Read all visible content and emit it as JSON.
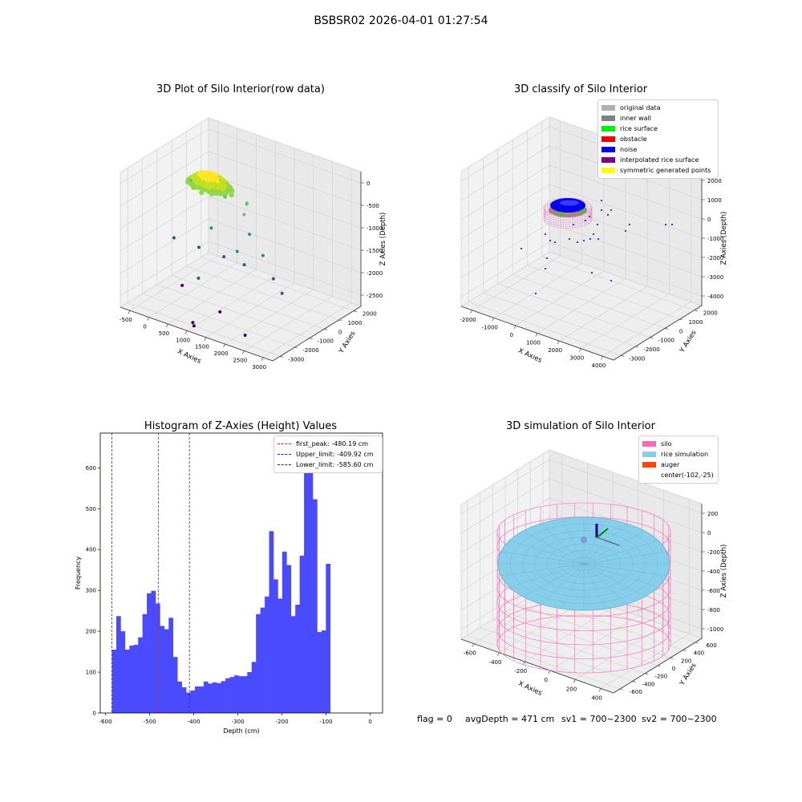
{
  "suptitle": "BSBSR02 2026-04-01 01:27:54",
  "footer": {
    "flag": "flag = 0",
    "avg": "avgDepth = 471 cm",
    "sv1": "sv1 = 700~2300",
    "sv2": "sv2 = 700~2300"
  },
  "chart_data": [
    {
      "type": "scatter",
      "title": "3D Plot of Silo Interior(row data)",
      "xlabel": "X Axies",
      "ylabel": "Y Axies",
      "zlabel": "Z Axies (Depth)",
      "x_ticks": [
        "-500",
        "0",
        "500",
        "1000",
        "1500",
        "2000",
        "2500",
        "3000"
      ],
      "y_ticks": [
        "-3000",
        "-2000",
        "-1000",
        "0",
        "1000",
        "2000"
      ],
      "z_ticks": [
        "-2500",
        "-2000",
        "-1500",
        "-1000",
        "-500",
        "0"
      ],
      "colormap": "viridis",
      "points": [
        [
          -100,
          -200,
          -420
        ],
        [
          700,
          0,
          -600
        ],
        [
          1100,
          400,
          -700
        ],
        [
          1300,
          -300,
          -750
        ],
        [
          900,
          900,
          -900
        ],
        [
          500,
          -400,
          -1300
        ],
        [
          1400,
          -200,
          -1200
        ],
        [
          1900,
          -600,
          -1450
        ],
        [
          2400,
          -1200,
          -1700
        ],
        [
          2700,
          -1400,
          -1900
        ],
        [
          -300,
          -800,
          -1700
        ],
        [
          300,
          -700,
          -1750
        ],
        [
          900,
          -600,
          -1800
        ],
        [
          1200,
          -500,
          -1600
        ],
        [
          1500,
          -800,
          -1750
        ],
        [
          600,
          -1500,
          -2200
        ],
        [
          300,
          -1800,
          -2400
        ],
        [
          1500,
          -2400,
          -2500
        ],
        [
          2300,
          -2800,
          -2700
        ],
        [
          1000,
          -2900,
          -2800
        ],
        [
          1050,
          -2950,
          -2850
        ]
      ],
      "surface": {
        "x": [
          -300,
          800
        ],
        "y": [
          -400,
          700
        ],
        "z": [
          -250,
          -550
        ]
      }
    },
    {
      "type": "scatter",
      "title": "3D classify of Silo Interior",
      "xlabel": "X Axies",
      "ylabel": "Y Axies",
      "zlabel": "Z Axies (Depth)",
      "x_ticks": [
        "-2000",
        "-1000",
        "0",
        "1000",
        "2000",
        "3000",
        "4000"
      ],
      "y_ticks": [
        "-3000",
        "-2000",
        "-1000",
        "0",
        "1000",
        "2000"
      ],
      "z_ticks": [
        "-4000",
        "-3000",
        "-2000",
        "-1000",
        "0",
        "1000",
        "2000"
      ],
      "legend": [
        {
          "label": "original data",
          "color": "#b0b0b0"
        },
        {
          "label": "inner wall",
          "color": "#808080"
        },
        {
          "label": "rice surface",
          "color": "#00ee00"
        },
        {
          "label": "obstacle",
          "color": "#ee0000"
        },
        {
          "label": "noise",
          "color": "#0000ee"
        },
        {
          "label": "interpolated rice surface",
          "color": "#800080"
        },
        {
          "label": "symmetric generated points",
          "color": "#ffff00"
        }
      ]
    },
    {
      "type": "bar",
      "title": "Histogram of Z-Axies (Height) Values",
      "xlabel": "Depth (cm)",
      "ylabel": "Frequency",
      "xlim": [
        -612,
        28
      ],
      "ylim": [
        0,
        685
      ],
      "x_ticks": [
        -600,
        -500,
        -400,
        -300,
        -200,
        -100,
        0
      ],
      "y_ticks": [
        0,
        100,
        200,
        300,
        400,
        500,
        600
      ],
      "bin_start": -585.6,
      "bin_width": 9.9,
      "values": [
        155,
        237,
        200,
        155,
        165,
        167,
        185,
        242,
        293,
        299,
        268,
        213,
        205,
        233,
        137,
        77,
        63,
        50,
        55,
        65,
        65,
        77,
        72,
        75,
        73,
        78,
        85,
        88,
        92,
        90,
        90,
        100,
        125,
        242,
        258,
        285,
        445,
        327,
        280,
        395,
        362,
        237,
        265,
        385,
        660,
        590,
        523,
        198,
        202,
        365
      ],
      "bar_color": "#4a4aff",
      "vlines": [
        {
          "label": "first_peak: -480.19 cm",
          "x": -480.19,
          "color": "#dd2222"
        },
        {
          "label": "Upper_limit: -409.92 cm",
          "x": -409.92,
          "color": "#2222cc"
        },
        {
          "label": "Lower_limit: -585.60 cm",
          "x": -585.6,
          "color": "#2222cc"
        }
      ]
    },
    {
      "type": "scatter",
      "title": "3D simulation of Silo Interior",
      "xlabel": "X Axies",
      "ylabel": "Y Axies",
      "zlabel": "Z Axies (Depth)",
      "x_ticks": [
        "-600",
        "-400",
        "-200",
        "0",
        "200",
        "400"
      ],
      "y_ticks": [
        "-600",
        "-400",
        "-200",
        "0",
        "200",
        "400",
        "600"
      ],
      "z_ticks": [
        "-1000",
        "-800",
        "-600",
        "-400",
        "-200",
        "0",
        "200"
      ],
      "legend": [
        {
          "label": "silo",
          "color": "#ff69b4"
        },
        {
          "label": "rice simulation",
          "color": "#87ceeb"
        },
        {
          "label": "auger",
          "color": "#ff4500"
        },
        {
          "label": "center(-102,-25)",
          "color": ""
        }
      ]
    }
  ]
}
